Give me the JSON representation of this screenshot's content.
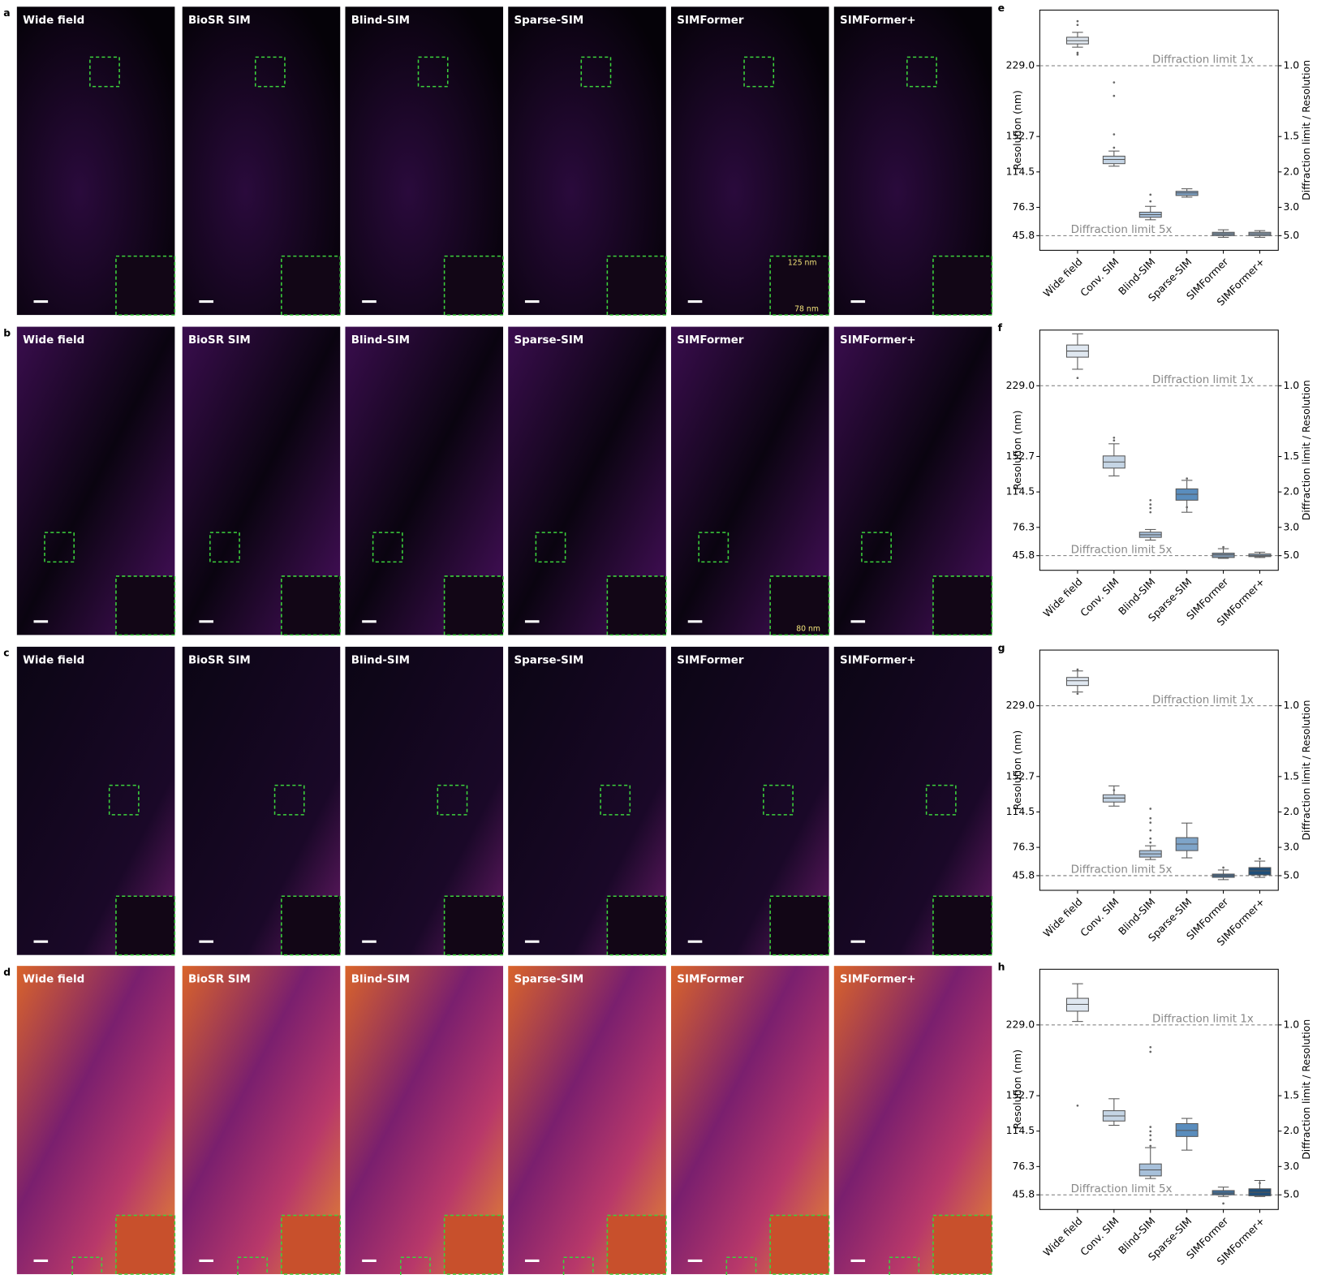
{
  "rows": [
    {
      "label": "a",
      "panel_titles": [
        "Wide field",
        "BioSR SIM",
        "Blind-SIM",
        "Sparse-SIM",
        "SIMFormer",
        "SIMFormer+"
      ],
      "annotations": [
        "125 nm",
        "78 nm"
      ]
    },
    {
      "label": "b",
      "panel_titles": [
        "Wide field",
        "BioSR SIM",
        "Blind-SIM",
        "Sparse-SIM",
        "SIMFormer",
        "SIMFormer+"
      ],
      "annotations": [
        "80 nm"
      ]
    },
    {
      "label": "c",
      "panel_titles": [
        "Wide field",
        "BioSR SIM",
        "Blind-SIM",
        "Sparse-SIM",
        "SIMFormer",
        "SIMFormer+"
      ]
    },
    {
      "label": "d",
      "panel_titles": [
        "Wide field",
        "BioSR SIM",
        "Blind-SIM",
        "Sparse-SIM",
        "SIMFormer",
        "SIMFormer+"
      ]
    }
  ],
  "chart_data": [
    {
      "type": "box",
      "panel_label": "e",
      "ylabel": "Resolution (nm)",
      "y2label": "Diffraction limit / Resolution",
      "categories": [
        "Wide field",
        "Conv. SIM",
        "Blind-SIM",
        "Sparse-SIM",
        "SIMFormer",
        "SIMFormer+"
      ],
      "colors": [
        "#dfe7f0",
        "#c5d5e5",
        "#a7c0da",
        "#7ea4c9",
        "#7d95ad",
        "#8aa0b6"
      ],
      "ylim": [
        30,
        289
      ],
      "yticks": [
        45.8,
        76.3,
        114.5,
        152.7,
        {
          "value": 229,
          "label": "229.0"
        }
      ],
      "y2ticks": [
        {
          "value": 1,
          "label": "1.0"
        },
        1.5,
        {
          "value": 2,
          "label": "2.0"
        },
        {
          "value": 3,
          "label": "3.0"
        },
        {
          "value": 5,
          "label": "5.0"
        }
      ],
      "reference_lines": [
        {
          "value": 229,
          "label": "Diffraction limit 1x"
        },
        {
          "value": 45.8,
          "label": "Diffraction limit 5x"
        }
      ],
      "boxes": [
        {
          "low": 249,
          "q1": 252.5,
          "median": 256,
          "q3": 259.7,
          "high": 265,
          "outliers": [
            277,
            273,
            243,
            241
          ]
        },
        {
          "low": 120.7,
          "q1": 123.4,
          "median": 127.9,
          "q3": 131.5,
          "high": 137,
          "outliers": [
            211,
            196.5,
            155,
            140.6
          ]
        },
        {
          "low": 62.9,
          "q1": 65.6,
          "median": 68.4,
          "q3": 71.1,
          "high": 77.4,
          "outliers": [
            90,
            82.8
          ]
        },
        {
          "low": 87.3,
          "q1": 89.1,
          "median": 91.8,
          "q3": 93.6,
          "high": 96.3,
          "outliers": []
        },
        {
          "low": 44,
          "q1": 45.8,
          "median": 47.6,
          "q3": 49.4,
          "high": 52.1,
          "outliers": []
        },
        {
          "low": 44,
          "q1": 45.8,
          "median": 47.6,
          "q3": 49.4,
          "high": 51.2,
          "outliers": []
        }
      ]
    },
    {
      "type": "box",
      "panel_label": "f",
      "ylabel": "Resolution (nm)",
      "y2label": "Diffraction limit / Resolution",
      "categories": [
        "Wide field",
        "Conv. SIM",
        "Blind-SIM",
        "Sparse-SIM",
        "SIMFormer",
        "SIMFormer+"
      ],
      "colors": [
        "#dfe7f0",
        "#c5d5e5",
        "#a7c0da",
        "#5a8dbd",
        "#7d95ad",
        "#8aa0b6"
      ],
      "ylim": [
        30,
        289
      ],
      "yticks": [
        45.8,
        76.3,
        114.5,
        152.7,
        {
          "value": 229,
          "label": "229.0"
        }
      ],
      "y2ticks": [
        {
          "value": 1,
          "label": "1.0"
        },
        1.5,
        {
          "value": 2,
          "label": "2.0"
        },
        {
          "value": 3,
          "label": "3.0"
        },
        {
          "value": 5,
          "label": "5.0"
        }
      ],
      "reference_lines": [
        {
          "value": 229,
          "label": "Diffraction limit 1x"
        },
        {
          "value": 45.8,
          "label": "Diffraction limit 5x"
        }
      ],
      "boxes": [
        {
          "low": 246.8,
          "q1": 259.8,
          "median": 266.4,
          "q3": 272.9,
          "high": 285,
          "outliers": [
            237.4
          ]
        },
        {
          "low": 131.8,
          "q1": 140.2,
          "median": 146.8,
          "q3": 153.3,
          "high": 166.4,
          "outliers": [
            173,
            170
          ]
        },
        {
          "low": 62.6,
          "q1": 65.5,
          "median": 68.3,
          "q3": 71.1,
          "high": 74,
          "outliers": [
            105.6,
            101,
            97,
            92.6
          ]
        },
        {
          "low": 92.6,
          "q1": 105.6,
          "median": 112,
          "q3": 117.8,
          "high": 127,
          "outliers": [
            129,
            98
          ]
        },
        {
          "low": 42.9,
          "q1": 43.8,
          "median": 46.7,
          "q3": 48.5,
          "high": 53.3,
          "outliers": [
            55
          ]
        },
        {
          "low": 43.8,
          "q1": 44.8,
          "median": 45.8,
          "q3": 47.6,
          "high": 49.5,
          "outliers": []
        }
      ]
    },
    {
      "type": "box",
      "panel_label": "g",
      "ylabel": "Resolution (nm)",
      "y2label": "Diffraction limit / Resolution",
      "categories": [
        "Wide field",
        "Conv. SIM",
        "Blind-SIM",
        "Sparse-SIM",
        "SIMFormer",
        "SIMFormer+"
      ],
      "colors": [
        "#dfe7f0",
        "#c5d5e5",
        "#a7c0da",
        "#7ea4c9",
        "#3f6e9a",
        "#1f4e79"
      ],
      "ylim": [
        30,
        289
      ],
      "yticks": [
        45.8,
        76.3,
        114.5,
        152.7,
        {
          "value": 229,
          "label": "229.0"
        }
      ],
      "y2ticks": [
        {
          "value": 1,
          "label": "1.0"
        },
        1.5,
        {
          "value": 2,
          "label": "2.0"
        },
        {
          "value": 3,
          "label": "3.0"
        },
        {
          "value": 5,
          "label": "5.0"
        }
      ],
      "reference_lines": [
        {
          "value": 229,
          "label": "Diffraction limit 1x"
        },
        {
          "value": 45.8,
          "label": "Diffraction limit 5x"
        }
      ],
      "boxes": [
        {
          "low": 243.8,
          "q1": 250.8,
          "median": 256,
          "q3": 259.5,
          "high": 266.5,
          "outliers": [
            268,
            242
          ]
        },
        {
          "low": 120.8,
          "q1": 125.2,
          "median": 129.5,
          "q3": 133,
          "high": 142.6,
          "outliers": [
            138
          ]
        },
        {
          "low": 63.2,
          "q1": 65.8,
          "median": 69.3,
          "q3": 72.8,
          "high": 78,
          "outliers": [
            118,
            107.7,
            103,
            94.6,
            85.9,
            81.5
          ]
        },
        {
          "low": 65,
          "q1": 72.8,
          "median": 79.9,
          "q3": 86.8,
          "high": 102.5,
          "outliers": []
        },
        {
          "low": 41.5,
          "q1": 44,
          "median": 45.8,
          "q3": 47.5,
          "high": 51.9,
          "outliers": [
            54.5
          ]
        },
        {
          "low": 44,
          "q1": 46.6,
          "median": 51,
          "q3": 54.5,
          "high": 61.5,
          "outliers": [
            64
          ]
        }
      ]
    },
    {
      "type": "box",
      "panel_label": "h",
      "ylabel": "Resolution (nm)",
      "y2label": "Diffraction limit / Resolution",
      "categories": [
        "Wide field",
        "Conv. SIM",
        "Blind-SIM",
        "Sparse-SIM",
        "SIMFormer",
        "SIMFormer+"
      ],
      "colors": [
        "#dfe7f0",
        "#c5d5e5",
        "#a7c0da",
        "#5a8dbd",
        "#3f6e9a",
        "#1f4e79"
      ],
      "ylim": [
        30,
        289
      ],
      "yticks": [
        45.8,
        76.3,
        114.5,
        152.7,
        {
          "value": 229,
          "label": "229.0"
        }
      ],
      "y2ticks": [
        {
          "value": 1,
          "label": "1.0"
        },
        1.5,
        {
          "value": 2,
          "label": "2.0"
        },
        {
          "value": 3,
          "label": "3.0"
        },
        {
          "value": 5,
          "label": "5.0"
        }
      ],
      "reference_lines": [
        {
          "value": 229,
          "label": "Diffraction limit 1x"
        },
        {
          "value": 45.8,
          "label": "Diffraction limit 5x"
        }
      ],
      "boxes": [
        {
          "low": 232.7,
          "q1": 243.8,
          "median": 251.2,
          "q3": 257.7,
          "high": 273.4,
          "outliers": [
            142
          ]
        },
        {
          "low": 120.8,
          "q1": 125.4,
          "median": 130.9,
          "q3": 136.5,
          "high": 149.4,
          "outliers": []
        },
        {
          "low": 63.4,
          "q1": 66.2,
          "median": 72.7,
          "q3": 79.1,
          "high": 96.7,
          "outliers": [
            205,
            200,
            119,
            114.3,
            110,
            105,
            98.5
          ]
        },
        {
          "low": 94,
          "q1": 108.7,
          "median": 115.2,
          "q3": 122.6,
          "high": 128.2,
          "outliers": []
        },
        {
          "low": 44,
          "q1": 45.8,
          "median": 47.6,
          "q3": 50.4,
          "high": 54.1,
          "outliers": [
            36.5
          ]
        },
        {
          "low": 44,
          "q1": 44.8,
          "median": 48.5,
          "q3": 52.3,
          "high": 61.3,
          "outliers": [
            58.5
          ]
        }
      ]
    }
  ]
}
